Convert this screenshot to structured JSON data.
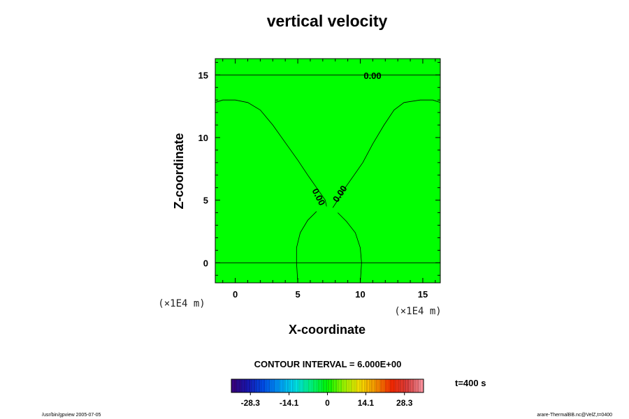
{
  "chart_data": {
    "type": "contour",
    "title": "vertical velocity",
    "xlabel": "X-coordinate",
    "ylabel": "Z-coordinate",
    "x_unit": "(×1E4 m)",
    "y_unit": "(×1E4 m)",
    "xlim": [
      -1.6,
      16.4
    ],
    "ylim": [
      -1.6,
      16.3
    ],
    "x_ticks": [
      0,
      5,
      10,
      15
    ],
    "y_ticks": [
      0,
      5,
      10,
      15
    ],
    "fill_color": "#00ff00",
    "contour_interval_text": "CONTOUR INTERVAL = 6.000E+00",
    "contour_labels": [
      "0.00",
      "0.00",
      "0.00"
    ],
    "contours": [
      {
        "level": 0.0,
        "points": [
          [
            -1.6,
            15.0
          ],
          [
            16.4,
            15.0
          ]
        ]
      },
      {
        "level": 0.0,
        "points": [
          [
            -1.6,
            12.8
          ],
          [
            -1.0,
            13.0
          ],
          [
            0.0,
            13.0
          ],
          [
            1.0,
            12.8
          ],
          [
            2.0,
            12.2
          ],
          [
            3.0,
            11.0
          ],
          [
            4.0,
            9.6
          ],
          [
            5.0,
            8.2
          ],
          [
            5.8,
            7.0
          ],
          [
            6.5,
            6.0
          ],
          [
            7.2,
            5.0
          ],
          [
            7.3,
            4.5
          ]
        ]
      },
      {
        "level": 0.0,
        "points": [
          [
            16.4,
            12.8
          ],
          [
            15.8,
            13.0
          ],
          [
            14.8,
            13.0
          ],
          [
            13.5,
            12.8
          ],
          [
            12.7,
            12.2
          ],
          [
            11.9,
            11.0
          ],
          [
            11.0,
            9.5
          ],
          [
            10.2,
            8.0
          ],
          [
            9.5,
            7.0
          ],
          [
            8.8,
            6.0
          ],
          [
            8.2,
            5.0
          ],
          [
            7.8,
            4.4
          ]
        ]
      },
      {
        "level": 0.0,
        "points": [
          [
            6.5,
            4.1
          ],
          [
            5.8,
            3.4
          ],
          [
            5.2,
            2.4
          ],
          [
            4.9,
            1.2
          ],
          [
            4.9,
            0.0
          ],
          [
            5.0,
            -1.6
          ]
        ]
      },
      {
        "level": 0.0,
        "points": [
          [
            8.2,
            4.0
          ],
          [
            8.9,
            3.3
          ],
          [
            9.6,
            2.4
          ],
          [
            10.0,
            1.2
          ],
          [
            10.1,
            0.0
          ],
          [
            10.0,
            -1.6
          ]
        ]
      },
      {
        "level": 0.0,
        "points": [
          [
            -1.6,
            0.0
          ],
          [
            16.4,
            0.0
          ]
        ]
      }
    ],
    "colorbar": {
      "min": -35.3,
      "max": 35.3,
      "tick_values": [
        -28.3,
        -14.1,
        0,
        14.1,
        28.3
      ],
      "tick_labels": [
        "-28.3",
        "-14.1",
        "0",
        "14.1",
        "28.3"
      ],
      "segments": 40,
      "stops": [
        "#3b0078",
        "#1a16b4",
        "#0050f0",
        "#00a0ff",
        "#00e8f0",
        "#00ff80",
        "#00ff00",
        "#9cff00",
        "#ffe800",
        "#ff9a00",
        "#ff2a00",
        "#e04040",
        "#ff9aa8"
      ]
    },
    "time_label": "t=400 s"
  },
  "footer": {
    "left": "/usr/bin/gpview 2005-07-05",
    "right": "arare-ThermalBB.nc@VelZ,t=0400"
  }
}
